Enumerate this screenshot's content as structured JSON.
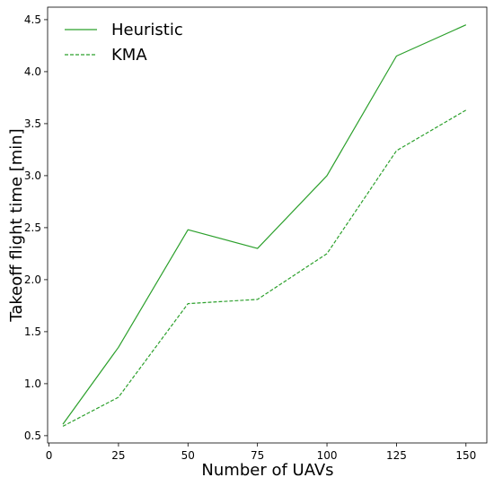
{
  "chart_data": {
    "type": "line",
    "title": "",
    "xlabel": "Number of UAVs",
    "ylabel": "Takeoff flight time [min]",
    "xlim": [
      -0.5,
      157.5
    ],
    "ylim": [
      0.43,
      4.62
    ],
    "xticks": [
      0,
      25,
      50,
      75,
      100,
      125,
      150
    ],
    "xtick_labels": [
      "0",
      "25",
      "50",
      "75",
      "100",
      "125",
      "150"
    ],
    "yticks": [
      0.5,
      1.0,
      1.5,
      2.0,
      2.5,
      3.0,
      3.5,
      4.0,
      4.5
    ],
    "ytick_labels": [
      "0.5",
      "1.0",
      "1.5",
      "2.0",
      "2.5",
      "3.0",
      "3.5",
      "4.0",
      "4.5"
    ],
    "grid": false,
    "legend_position": "top-left",
    "x": [
      5,
      25,
      50,
      75,
      100,
      125,
      150
    ],
    "series": [
      {
        "name": "Heuristic",
        "color": "#2ca02c",
        "dash": "solid",
        "values": [
          0.61,
          1.35,
          2.48,
          2.3,
          3.0,
          4.15,
          4.45
        ]
      },
      {
        "name": "KMA",
        "color": "#2ca02c",
        "dash": "dashed",
        "values": [
          0.59,
          0.87,
          1.77,
          1.81,
          2.25,
          3.24,
          3.63
        ]
      }
    ]
  }
}
